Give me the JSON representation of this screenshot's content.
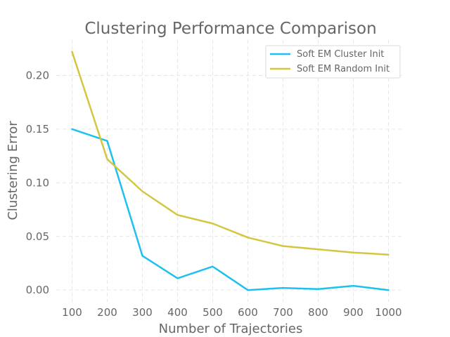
{
  "chart_data": {
    "type": "line",
    "title": "Clustering Performance Comparison",
    "xlabel": "Number of Trajectories",
    "ylabel": "Clustering Error",
    "x": [
      100,
      200,
      300,
      400,
      500,
      600,
      700,
      800,
      900,
      1000
    ],
    "xticks": [
      "100",
      "200",
      "300",
      "400",
      "500",
      "600",
      "700",
      "800",
      "900",
      "1000"
    ],
    "yticks": [
      "0.00",
      "0.05",
      "0.10",
      "0.15",
      "0.20"
    ],
    "ytick_values": [
      0,
      0.05,
      0.1,
      0.15,
      0.2
    ],
    "xlim": [
      55,
      1045
    ],
    "ylim": [
      -0.011,
      0.233
    ],
    "grid": true,
    "legend_position": "top-right",
    "series": [
      {
        "name": "Soft EM Cluster Init",
        "color": "#1ec0f0",
        "values": [
          0.15,
          0.139,
          0.032,
          0.011,
          0.022,
          0.0,
          0.002,
          0.001,
          0.004,
          0.0
        ]
      },
      {
        "name": "Soft EM Random Init",
        "color": "#d4c640",
        "values": [
          0.222,
          0.122,
          0.092,
          0.07,
          0.062,
          0.049,
          0.041,
          0.038,
          0.035,
          0.033
        ]
      }
    ]
  }
}
